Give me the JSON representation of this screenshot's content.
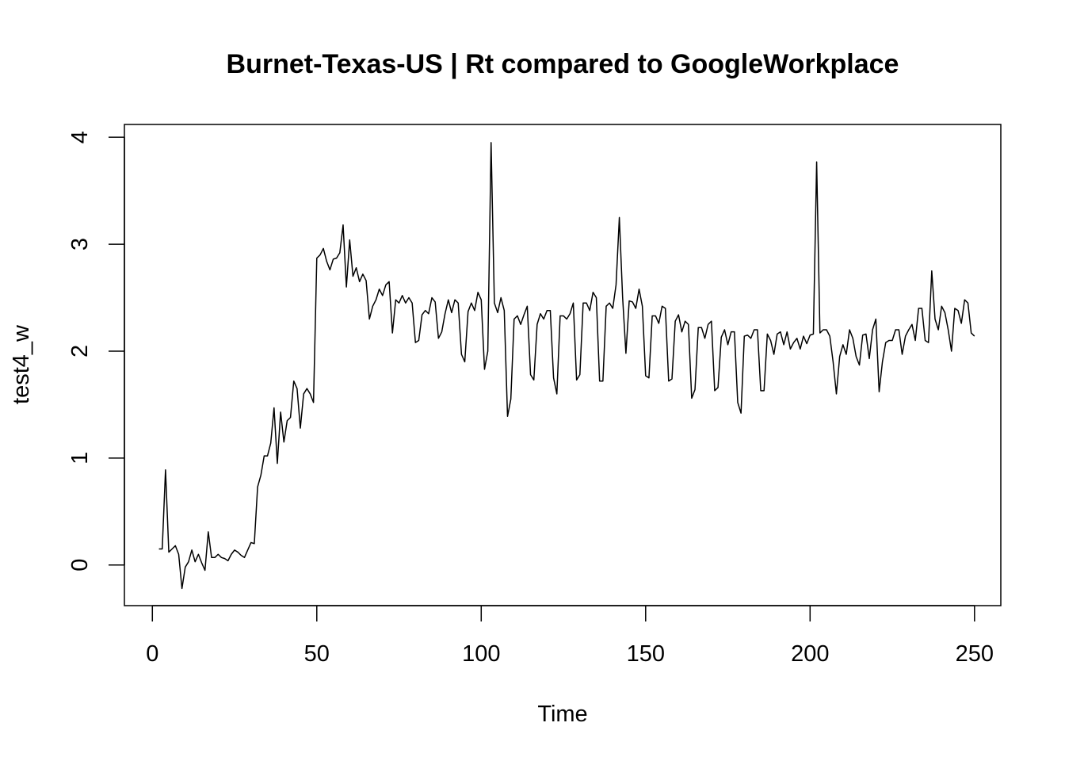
{
  "chart_data": {
    "type": "line",
    "title": "Burnet-Texas-US | Rt compared to GoogleWorkplace",
    "xlabel": "Time",
    "ylabel": "test4_w",
    "xlim": [
      -8.5,
      258
    ],
    "ylim": [
      -0.38,
      4.12
    ],
    "x_ticks": [
      0,
      50,
      100,
      150,
      200,
      250
    ],
    "y_ticks": [
      0,
      1,
      2,
      3,
      4
    ],
    "line_color": "#000000",
    "grid": false,
    "legend": "none",
    "x_start": 2,
    "values": [
      0.15,
      0.15,
      0.89,
      0.12,
      0.15,
      0.18,
      0.1,
      -0.22,
      -0.02,
      0.03,
      0.14,
      0.03,
      0.1,
      0.02,
      -0.05,
      0.31,
      0.07,
      0.07,
      0.1,
      0.07,
      0.06,
      0.04,
      0.1,
      0.14,
      0.12,
      0.09,
      0.07,
      0.14,
      0.21,
      0.2,
      0.73,
      0.84,
      1.02,
      1.02,
      1.14,
      1.47,
      0.95,
      1.43,
      1.15,
      1.35,
      1.38,
      1.72,
      1.65,
      1.28,
      1.6,
      1.65,
      1.6,
      1.52,
      2.87,
      2.9,
      2.96,
      2.84,
      2.76,
      2.86,
      2.87,
      2.92,
      3.18,
      2.6,
      3.04,
      2.7,
      2.78,
      2.65,
      2.72,
      2.66,
      2.3,
      2.42,
      2.48,
      2.58,
      2.52,
      2.62,
      2.65,
      2.17,
      2.48,
      2.45,
      2.52,
      2.45,
      2.5,
      2.45,
      2.08,
      2.1,
      2.34,
      2.38,
      2.35,
      2.5,
      2.46,
      2.12,
      2.18,
      2.35,
      2.48,
      2.36,
      2.48,
      2.45,
      1.97,
      1.9,
      2.37,
      2.45,
      2.38,
      2.55,
      2.48,
      1.83,
      2.0,
      3.95,
      2.45,
      2.36,
      2.5,
      2.38,
      1.39,
      1.55,
      2.3,
      2.33,
      2.25,
      2.34,
      2.42,
      1.78,
      1.73,
      2.25,
      2.35,
      2.3,
      2.38,
      2.38,
      1.75,
      1.6,
      2.33,
      2.33,
      2.3,
      2.35,
      2.45,
      1.73,
      1.78,
      2.45,
      2.45,
      2.38,
      2.55,
      2.5,
      1.72,
      1.72,
      2.42,
      2.45,
      2.4,
      2.62,
      3.25,
      2.5,
      1.98,
      2.47,
      2.46,
      2.4,
      2.58,
      2.42,
      1.77,
      1.75,
      2.33,
      2.33,
      2.26,
      2.42,
      2.4,
      1.72,
      1.74,
      2.28,
      2.34,
      2.18,
      2.28,
      2.25,
      1.56,
      1.64,
      2.22,
      2.22,
      2.12,
      2.25,
      2.28,
      1.63,
      1.66,
      2.13,
      2.2,
      2.06,
      2.18,
      2.18,
      1.52,
      1.42,
      2.14,
      2.15,
      2.12,
      2.2,
      2.2,
      1.63,
      1.63,
      2.16,
      2.1,
      1.97,
      2.16,
      2.18,
      2.06,
      2.18,
      2.02,
      2.08,
      2.12,
      2.02,
      2.14,
      2.07,
      2.15,
      2.16,
      3.77,
      2.17,
      2.2,
      2.2,
      2.14,
      1.9,
      1.6,
      1.95,
      2.06,
      1.97,
      2.2,
      2.12,
      1.95,
      1.87,
      2.15,
      2.16,
      1.93,
      2.2,
      2.3,
      1.62,
      1.9,
      2.08,
      2.1,
      2.1,
      2.2,
      2.2,
      1.97,
      2.14,
      2.2,
      2.25,
      2.1,
      2.4,
      2.4,
      2.1,
      2.08,
      2.75,
      2.3,
      2.2,
      2.42,
      2.36,
      2.2,
      2.0,
      2.4,
      2.38,
      2.26,
      2.48,
      2.45,
      2.17,
      2.14
    ]
  }
}
